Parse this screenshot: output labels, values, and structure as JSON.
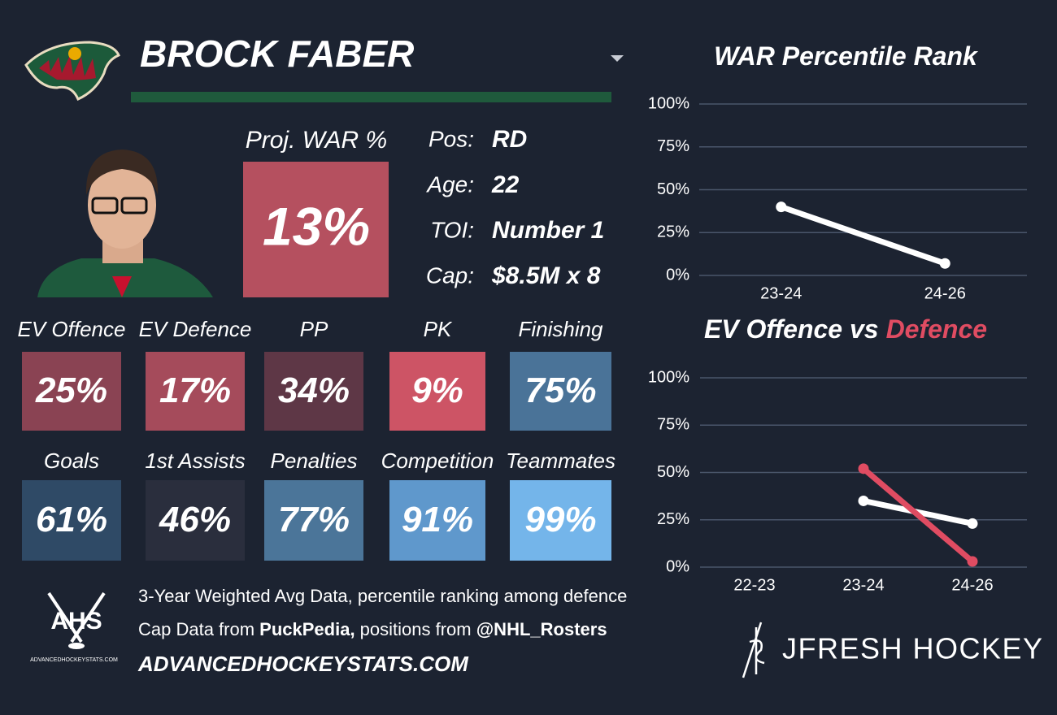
{
  "header": {
    "name": "BROCK FABER"
  },
  "proj_war": {
    "label": "Proj. WAR %",
    "value": "13%"
  },
  "info": [
    {
      "label": "Pos:",
      "value": "RD"
    },
    {
      "label": "Age:",
      "value": "22"
    },
    {
      "label": "TOI:",
      "value": "Number 1"
    },
    {
      "label": "Cap:",
      "value": "$8.5M x 8"
    }
  ],
  "tiles": [
    {
      "label": "EV Offence",
      "value": "25%",
      "color": "#8a4353"
    },
    {
      "label": "EV Defence",
      "value": "17%",
      "color": "#a54b5b"
    },
    {
      "label": "PP",
      "value": "34%",
      "color": "#5e3746"
    },
    {
      "label": "PK",
      "value": "9%",
      "color": "#cd5465"
    },
    {
      "label": "Finishing",
      "value": "75%",
      "color": "#4a7398"
    },
    {
      "label": "Goals",
      "value": "61%",
      "color": "#2f4a66"
    },
    {
      "label": "1st Assists",
      "value": "46%",
      "color": "#2a2e3d"
    },
    {
      "label": "Penalties",
      "value": "77%",
      "color": "#4b7599"
    },
    {
      "label": "Competition",
      "value": "91%",
      "color": "#5f98cc"
    },
    {
      "label": "Teammates",
      "value": "99%",
      "color": "#74b5ea"
    }
  ],
  "footer": {
    "logo_text": "AHS",
    "logo_subtext": "ADVANCEDHOCKEYSTATS.COM",
    "line1": "3-Year Weighted Avg Data, percentile ranking among defence",
    "line2": [
      "Cap Data from ",
      "PuckPedia,",
      " positions from ",
      "@NHL_Rosters"
    ],
    "website": "ADVANCEDHOCKEYSTATS.COM",
    "brand": "JFRESH HOCKEY"
  },
  "chart_data": [
    {
      "type": "line",
      "title": "WAR Percentile Rank",
      "categories": [
        "23-24",
        "24-26"
      ],
      "series": [
        {
          "color": "#ffffff",
          "values": [
            40,
            7
          ]
        }
      ],
      "ylim": [
        0,
        100
      ],
      "yticks": [
        {
          "value": 0,
          "label": "0%"
        },
        {
          "value": 25,
          "label": "25%"
        },
        {
          "value": 50,
          "label": "50%"
        },
        {
          "value": 75,
          "label": "75%"
        },
        {
          "value": 100,
          "label": "100%"
        }
      ],
      "grid": true
    },
    {
      "type": "line",
      "title": "EV Offence vs",
      "title_highlight": "Defence",
      "title_highlight_color": "#e04c62",
      "categories": [
        "22-23",
        "23-24",
        "24-26"
      ],
      "series": [
        {
          "color": "#ffffff",
          "values": [
            null,
            35,
            23
          ]
        },
        {
          "color": "#e04c62",
          "values": [
            null,
            52,
            3
          ]
        }
      ],
      "ylim": [
        0,
        100
      ],
      "yticks": [
        {
          "value": 0,
          "label": "0%"
        },
        {
          "value": 25,
          "label": "25%"
        },
        {
          "value": 50,
          "label": "50%"
        },
        {
          "value": 75,
          "label": "75%"
        },
        {
          "value": 100,
          "label": "100%"
        }
      ],
      "grid": true
    }
  ]
}
